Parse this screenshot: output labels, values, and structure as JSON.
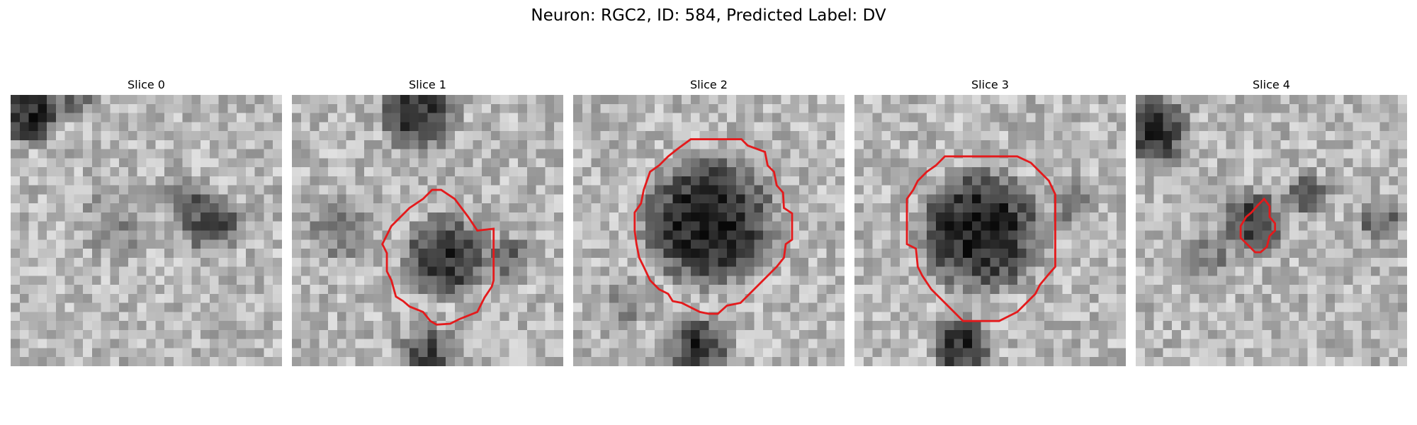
{
  "figure": {
    "title": "Neuron: RGC2, ID: 584, Predicted Label: DV",
    "contour_color": "#e41a1c",
    "panels": [
      {
        "title": "Slice 0",
        "has_contour": false,
        "seed": 11
      },
      {
        "title": "Slice 1",
        "has_contour": true,
        "seed": 23
      },
      {
        "title": "Slice 2",
        "has_contour": true,
        "seed": 37
      },
      {
        "title": "Slice 3",
        "has_contour": true,
        "seed": 41
      },
      {
        "title": "Slice 4",
        "has_contour": true,
        "seed": 53
      }
    ]
  }
}
